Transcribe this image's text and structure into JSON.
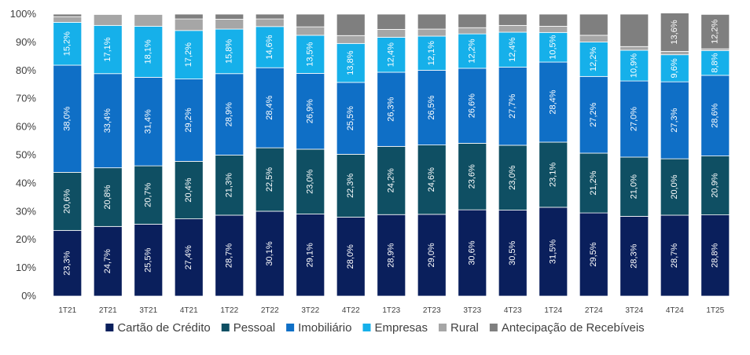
{
  "chart_data": {
    "type": "bar",
    "stacked": true,
    "categories": [
      "1T21",
      "2T21",
      "3T21",
      "4T21",
      "1T22",
      "2T22",
      "3T22",
      "4T22",
      "1T23",
      "2T23",
      "3T23",
      "4T23",
      "1T24",
      "2T24",
      "3T24",
      "4T24",
      "1T25"
    ],
    "ylim": [
      0,
      100
    ],
    "yticks": [
      "0%",
      "10%",
      "20%",
      "30%",
      "40%",
      "50%",
      "60%",
      "70%",
      "80%",
      "90%",
      "100%"
    ],
    "legend_position": "bottom",
    "series": [
      {
        "name": "Cartão de Crédito",
        "color": "#0a1f5c",
        "values": [
          23.3,
          24.7,
          25.5,
          27.4,
          28.7,
          30.1,
          29.1,
          28.0,
          28.9,
          29.0,
          30.6,
          30.5,
          31.5,
          29.5,
          28.3,
          28.7,
          28.8
        ],
        "labels": [
          "23,3%",
          "24,7%",
          "25,5%",
          "27,4%",
          "28,7%",
          "30,1%",
          "29,1%",
          "28,0%",
          "28,9%",
          "29,0%",
          "30,6%",
          "30,5%",
          "31,5%",
          "29,5%",
          "28,3%",
          "28,7%",
          "28,8%"
        ]
      },
      {
        "name": "Pessoal",
        "color": "#0f4f63",
        "values": [
          20.6,
          20.8,
          20.7,
          20.4,
          21.3,
          22.5,
          23.0,
          22.3,
          24.2,
          24.6,
          23.6,
          23.0,
          23.1,
          21.2,
          21.0,
          20.0,
          20.9
        ],
        "labels": [
          "20,6%",
          "20,8%",
          "20,7%",
          "20,4%",
          "21,3%",
          "22,5%",
          "23,0%",
          "22,3%",
          "24,2%",
          "24,6%",
          "23,6%",
          "23,0%",
          "23,1%",
          "21,2%",
          "21,0%",
          "20,0%",
          "20,9%"
        ]
      },
      {
        "name": "Imobiliário",
        "color": "#0f6fc6",
        "values": [
          38.0,
          33.4,
          31.4,
          29.2,
          28.9,
          28.4,
          26.9,
          25.5,
          26.3,
          26.5,
          26.6,
          27.7,
          28.4,
          27.2,
          27.0,
          27.3,
          28.6
        ],
        "labels": [
          "38,0%",
          "33,4%",
          "31,4%",
          "29,2%",
          "28,9%",
          "28,4%",
          "26,9%",
          "25,5%",
          "26,3%",
          "26,5%",
          "26,6%",
          "27,7%",
          "28,4%",
          "27,2%",
          "27,0%",
          "27,3%",
          "28,6%"
        ]
      },
      {
        "name": "Empresas",
        "color": "#16b0ea",
        "values": [
          15.2,
          17.1,
          18.1,
          17.2,
          15.8,
          14.6,
          13.5,
          13.8,
          12.4,
          12.1,
          12.2,
          12.4,
          10.5,
          12.2,
          10.9,
          9.6,
          8.8
        ],
        "labels": [
          "15,2%",
          "17,1%",
          "18,1%",
          "17,2%",
          "15,8%",
          "14,6%",
          "13,5%",
          "13,8%",
          "12,4%",
          "12,1%",
          "12,2%",
          "12,4%",
          "10,5%",
          "12,2%",
          "10,9%",
          "9,6%",
          "8,8%"
        ]
      },
      {
        "name": "Rural",
        "color": "#a6a6a6",
        "values": [
          2.0,
          3.9,
          4.2,
          4.1,
          3.5,
          2.7,
          3.0,
          2.8,
          2.8,
          2.5,
          2.2,
          2.4,
          2.2,
          2.4,
          1.3,
          1.2,
          0.6
        ],
        "labels": []
      },
      {
        "name": "Antecipação de Recebíveis",
        "color": "#7f7f7f",
        "values": [
          0.9,
          0.1,
          0.1,
          1.7,
          1.8,
          1.7,
          4.5,
          7.6,
          5.4,
          5.3,
          4.8,
          4.0,
          4.3,
          7.5,
          11.5,
          13.6,
          12.2
        ],
        "labels": [
          "",
          "",
          "",
          "",
          "",
          "",
          "",
          "",
          "",
          "",
          "",
          "",
          "",
          "",
          "",
          "13,6%",
          "12,2%"
        ]
      }
    ]
  }
}
